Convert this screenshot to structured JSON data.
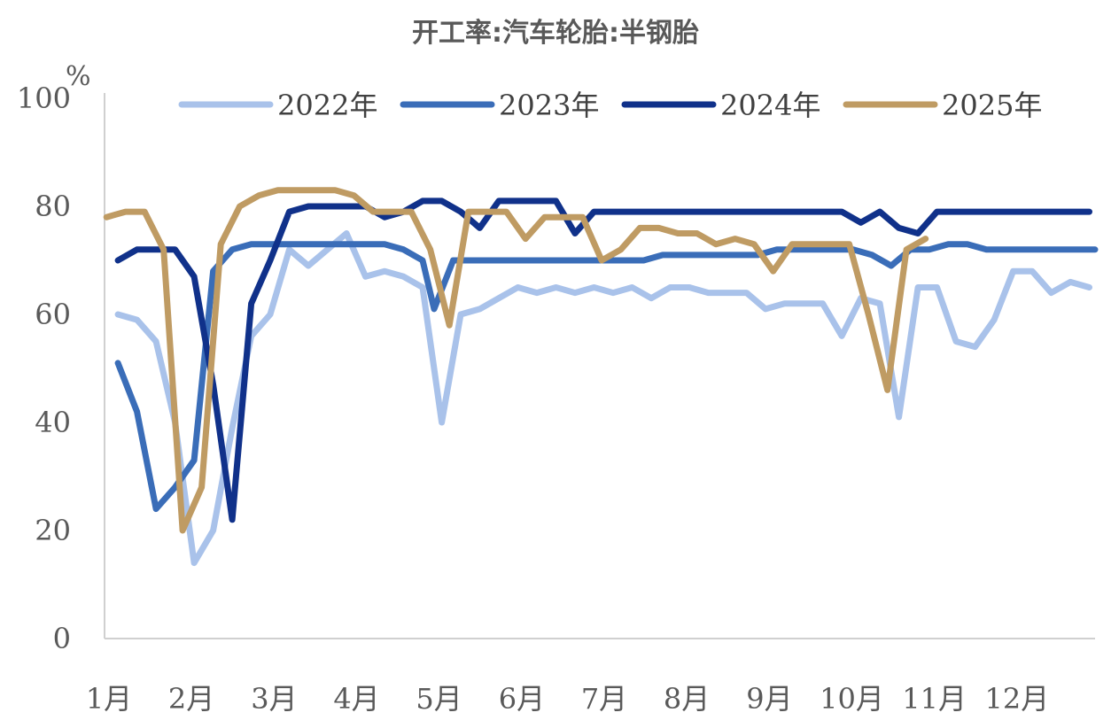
{
  "chart_data": {
    "type": "line",
    "title": "开工率:汽车轮胎:半钢胎",
    "unit": "%",
    "ylim": [
      0,
      100
    ],
    "yticks": [
      0,
      20,
      40,
      60,
      80,
      100
    ],
    "xlim": [
      0,
      52
    ],
    "xtick_labels": [
      "1月",
      "2月",
      "3月",
      "4月",
      "5月",
      "6月",
      "7月",
      "8月",
      "9月",
      "10月",
      "11月",
      "12月"
    ],
    "xtick_positions": [
      0,
      4.33,
      8.67,
      13,
      17.33,
      21.67,
      26,
      30.33,
      34.67,
      39,
      43.33,
      47.67
    ],
    "legend_position": "top",
    "grid": false,
    "series": [
      {
        "name": "2022年",
        "color": "#a9c2ea",
        "x": [
          0.7,
          1.7,
          2.7,
          3.7,
          4.7,
          5.7,
          6.7,
          7.7,
          8.7,
          9.7,
          10.7,
          11.7,
          12.7,
          13.7,
          14.7,
          15.7,
          16.7,
          17.7,
          18.7,
          19.7,
          20.7,
          21.7,
          22.7,
          23.7,
          24.7,
          25.7,
          26.7,
          27.7,
          28.7,
          29.7,
          30.7,
          31.7,
          32.7,
          33.7,
          34.7,
          35.7,
          36.7,
          37.7,
          38.7,
          39.7,
          40.7,
          41.7,
          42.7,
          43.7,
          44.7,
          45.7,
          46.7,
          47.7,
          48.7,
          49.7,
          50.7,
          51.7
        ],
        "values": [
          60,
          59,
          55,
          40,
          14,
          20,
          39,
          56,
          60,
          72,
          69,
          72,
          75,
          67,
          68,
          67,
          65,
          40,
          60,
          61,
          63,
          65,
          64,
          65,
          64,
          65,
          64,
          65,
          63,
          65,
          65,
          64,
          64,
          64,
          61,
          62,
          62,
          62,
          56,
          63,
          62,
          41,
          65,
          65,
          55,
          54,
          59,
          68,
          68,
          64,
          66,
          65
        ]
      },
      {
        "name": "2023年",
        "color": "#3a6db8",
        "x": [
          0.7,
          1.7,
          2.7,
          3.7,
          4.7,
          5.7,
          6.7,
          7.7,
          8.7,
          9.7,
          10.7,
          11.7,
          12.7,
          13.7,
          14.7,
          15.7,
          16.7,
          17.3,
          18.3,
          19.3,
          20.3,
          21.3,
          22.3,
          23.3,
          24.3,
          25.3,
          26.3,
          27.3,
          28.3,
          29.3,
          30.3,
          31.3,
          32.3,
          33.3,
          34.3,
          35.3,
          36.3,
          37.3,
          38.3,
          39.3,
          40.3,
          41.3,
          42.3,
          43.3,
          44.3,
          45.3,
          46.3,
          47.3,
          48.3,
          49.3,
          50.3,
          51.3,
          52
        ],
        "values": [
          51,
          42,
          24,
          28,
          33,
          68,
          72,
          73,
          73,
          73,
          73,
          73,
          73,
          73,
          73,
          72,
          70,
          61,
          70,
          70,
          70,
          70,
          70,
          70,
          70,
          70,
          70,
          70,
          70,
          71,
          71,
          71,
          71,
          71,
          71,
          72,
          72,
          72,
          72,
          72,
          71,
          69,
          72,
          72,
          73,
          73,
          72,
          72,
          72,
          72,
          72,
          72,
          72
        ]
      },
      {
        "name": "2024年",
        "color": "#10318a",
        "x": [
          0.7,
          1.7,
          2.7,
          3.7,
          4.7,
          5.7,
          6.7,
          7.7,
          8.7,
          9.7,
          10.7,
          11.7,
          12.7,
          13.7,
          14.7,
          15.7,
          16.7,
          17.7,
          18.7,
          19.7,
          20.7,
          21.7,
          22.7,
          23.7,
          24.7,
          25.7,
          26.7,
          27.7,
          28.7,
          29.7,
          30.7,
          31.7,
          32.7,
          33.7,
          34.7,
          35.7,
          36.7,
          37.7,
          38.7,
          39.7,
          40.7,
          41.7,
          42.7,
          43.7,
          44.7,
          45.7,
          46.7,
          47.7,
          48.7,
          49.7,
          50.7,
          51.7
        ],
        "values": [
          70,
          72,
          72,
          72,
          67,
          47,
          22,
          62,
          70,
          79,
          80,
          80,
          80,
          80,
          78,
          79,
          81,
          81,
          79,
          76,
          81,
          81,
          81,
          81,
          75,
          79,
          79,
          79,
          79,
          79,
          79,
          79,
          79,
          79,
          79,
          79,
          79,
          79,
          79,
          77,
          79,
          76,
          75,
          79,
          79,
          79,
          79,
          79,
          79,
          79,
          79,
          79
        ]
      },
      {
        "name": "2025年",
        "color": "#bf9b63",
        "x": [
          0.1,
          1.1,
          2.1,
          3.1,
          4.1,
          5.1,
          6.1,
          7.1,
          8.1,
          9.1,
          10.1,
          11.1,
          12.1,
          13.1,
          14.1,
          15.1,
          16.1,
          17.1,
          18.1,
          19.1,
          20.1,
          21.1,
          22.1,
          23.1,
          24.1,
          25.1,
          26.1,
          27.1,
          28.1,
          29.1,
          30.1,
          31.1,
          32.1,
          33.1,
          34.1,
          35.1,
          36.1,
          37.1,
          38.1,
          39.1,
          40.1,
          41.1,
          42.1,
          43.1
        ],
        "values": [
          78,
          79,
          79,
          72,
          20,
          28,
          73,
          80,
          82,
          83,
          83,
          83,
          83,
          82,
          79,
          79,
          79,
          72,
          58,
          79,
          79,
          79,
          74,
          78,
          78,
          78,
          70,
          72,
          76,
          76,
          75,
          75,
          73,
          74,
          73,
          68,
          73,
          73,
          73,
          73,
          60,
          46,
          72,
          74
        ]
      }
    ]
  }
}
